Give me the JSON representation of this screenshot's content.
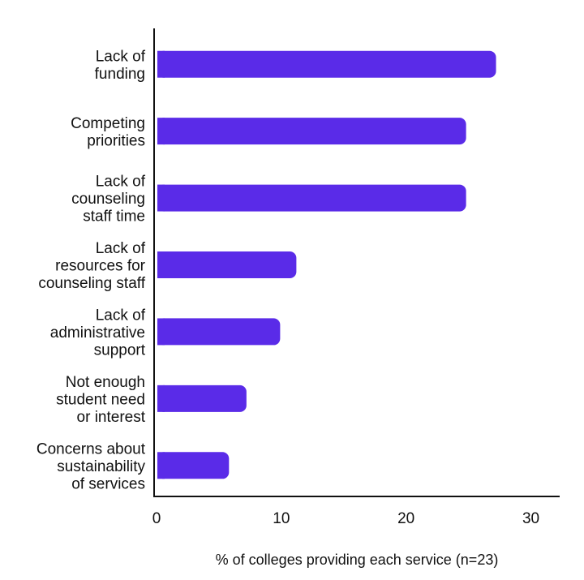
{
  "chart_data": {
    "type": "bar",
    "orientation": "horizontal",
    "categories": [
      [
        "Lack of",
        "funding"
      ],
      [
        "Competing",
        "priorities"
      ],
      [
        "Lack of",
        "counseling",
        "staff time"
      ],
      [
        "Lack of",
        "resources for",
        "counseling staff"
      ],
      [
        "Lack of",
        "administrative",
        "support"
      ],
      [
        "Not enough",
        "student need",
        "or interest"
      ],
      [
        "Concerns about",
        "sustainability",
        "of services"
      ]
    ],
    "values": [
      27.4,
      25.0,
      25.0,
      11.4,
      10.1,
      7.4,
      6.0
    ],
    "xlabel": "% of colleges providing each service (n=23)",
    "ylabel": "",
    "title": "",
    "xlim": [
      0,
      32.5
    ],
    "xticks": [
      0,
      10,
      20,
      30
    ],
    "grid": false,
    "legend": "none",
    "bar_color": "#5a2be8",
    "axis_color": "#111111"
  }
}
